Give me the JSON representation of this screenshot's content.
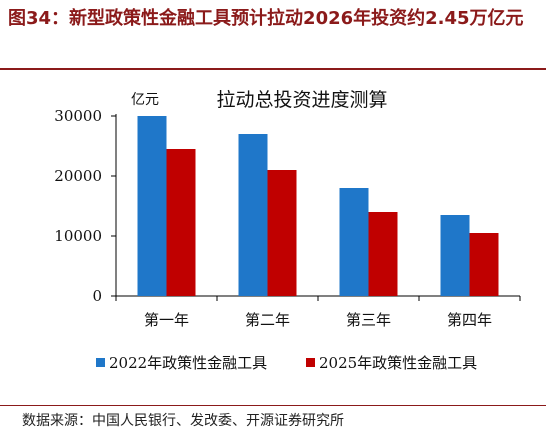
{
  "figure": {
    "title": "图34：新型政策性金融工具预计拉动2026年投资约2.45万亿元",
    "source": "数据来源：中国人民银行、发改委、开源证券研究所"
  },
  "chart_data": {
    "type": "bar",
    "title": "拉动总投资进度测算",
    "unit_label": "亿元",
    "categories": [
      "第一年",
      "第二年",
      "第三年",
      "第四年"
    ],
    "series": [
      {
        "name": "2022年政策性金融工具",
        "color": "#1F77C9",
        "values": [
          30000,
          27000,
          18000,
          13500
        ]
      },
      {
        "name": "2025年政策性金融工具",
        "color": "#C00000",
        "values": [
          24500,
          21000,
          14000,
          10500
        ]
      }
    ],
    "yticks": [
      0,
      10000,
      20000,
      30000
    ],
    "ylim": [
      0,
      30000
    ],
    "grid": false,
    "legend_position": "bottom"
  }
}
